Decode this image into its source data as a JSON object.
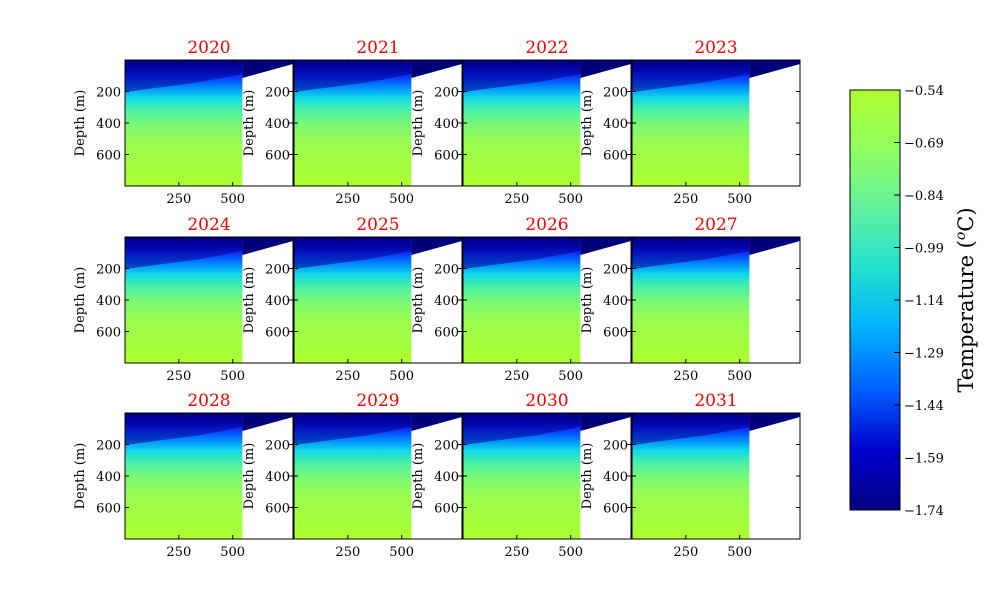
{
  "chart_data": {
    "type": "heatmap",
    "panels": [
      {
        "title": "2020"
      },
      {
        "title": "2021"
      },
      {
        "title": "2022"
      },
      {
        "title": "2023"
      },
      {
        "title": "2024"
      },
      {
        "title": "2025"
      },
      {
        "title": "2026"
      },
      {
        "title": "2027"
      },
      {
        "title": "2028"
      },
      {
        "title": "2029"
      },
      {
        "title": "2030"
      },
      {
        "title": "2031"
      }
    ],
    "title_color": "#ff0000",
    "ylabel": "Depth (m)",
    "xlabel": "",
    "xlim": [
      0,
      780
    ],
    "ylim": [
      800,
      0
    ],
    "xticks": [
      250,
      500
    ],
    "xtick_labels": [
      "250",
      "500"
    ],
    "yticks": [
      200,
      400,
      600
    ],
    "ytick_labels": [
      "200",
      "400",
      "600"
    ],
    "data_extent_x": 545,
    "colorbar": {
      "label": "Temperature (°C)",
      "label_base": "Temperature (",
      "label_unit_o": "o",
      "label_unit_c": "C)",
      "range": [
        -1.74,
        -0.54
      ],
      "ticks": [
        -0.54,
        -0.69,
        -0.84,
        -0.99,
        -1.14,
        -1.29,
        -1.44,
        -1.59,
        -1.74
      ],
      "tick_labels": [
        "−0.54",
        "−0.69",
        "−0.84",
        "−0.99",
        "−1.14",
        "−1.29",
        "−1.44",
        "−1.59",
        "−1.74"
      ]
    },
    "colormap": [
      "#000080",
      "#0000d0",
      "#0060ff",
      "#00b0ff",
      "#20e0d0",
      "#60f0a0",
      "#90ff60",
      "#adff2f"
    ],
    "grid": false
  }
}
